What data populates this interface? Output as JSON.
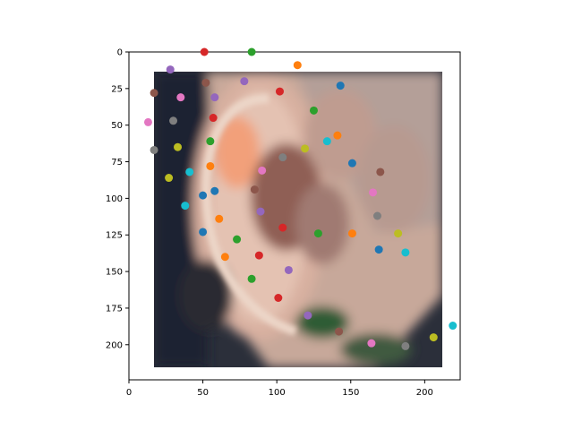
{
  "chart_data": {
    "type": "scatter",
    "background_image": "ear-closeup",
    "xlim": [
      0,
      224
    ],
    "ylim": [
      224,
      0
    ],
    "x_ticks": [
      0,
      50,
      100,
      150,
      200
    ],
    "y_ticks": [
      0,
      25,
      50,
      75,
      100,
      125,
      150,
      175,
      200
    ],
    "grid": false,
    "points": [
      {
        "x": 28,
        "y": 12,
        "color": "#9467bd"
      },
      {
        "x": 51,
        "y": 0,
        "color": "#d62728"
      },
      {
        "x": 83,
        "y": 0,
        "color": "#2ca02c"
      },
      {
        "x": 114,
        "y": 9,
        "color": "#ff7f0e"
      },
      {
        "x": 17,
        "y": 28,
        "color": "#8c564b"
      },
      {
        "x": 52,
        "y": 21,
        "color": "#8c564b"
      },
      {
        "x": 78,
        "y": 20,
        "color": "#9467bd"
      },
      {
        "x": 102,
        "y": 27,
        "color": "#d62728"
      },
      {
        "x": 143,
        "y": 23,
        "color": "#1f77b4"
      },
      {
        "x": 35,
        "y": 31,
        "color": "#e377c2"
      },
      {
        "x": 58,
        "y": 31,
        "color": "#9467bd"
      },
      {
        "x": 13,
        "y": 48,
        "color": "#e377c2"
      },
      {
        "x": 30,
        "y": 47,
        "color": "#7f7f7f"
      },
      {
        "x": 57,
        "y": 45,
        "color": "#d62728"
      },
      {
        "x": 125,
        "y": 40,
        "color": "#2ca02c"
      },
      {
        "x": 141,
        "y": 57,
        "color": "#ff7f0e"
      },
      {
        "x": 17,
        "y": 67,
        "color": "#7f7f7f"
      },
      {
        "x": 33,
        "y": 65,
        "color": "#bcbd22"
      },
      {
        "x": 55,
        "y": 61,
        "color": "#2ca02c"
      },
      {
        "x": 134,
        "y": 61,
        "color": "#17becf"
      },
      {
        "x": 119,
        "y": 66,
        "color": "#bcbd22"
      },
      {
        "x": 104,
        "y": 72,
        "color": "#7f7f7f"
      },
      {
        "x": 151,
        "y": 76,
        "color": "#1f77b4"
      },
      {
        "x": 55,
        "y": 78,
        "color": "#ff7f0e"
      },
      {
        "x": 90,
        "y": 81,
        "color": "#e377c2"
      },
      {
        "x": 41,
        "y": 82,
        "color": "#17becf"
      },
      {
        "x": 27,
        "y": 86,
        "color": "#bcbd22"
      },
      {
        "x": 170,
        "y": 82,
        "color": "#8c564b"
      },
      {
        "x": 50,
        "y": 98,
        "color": "#1f77b4"
      },
      {
        "x": 58,
        "y": 95,
        "color": "#1f77b4"
      },
      {
        "x": 85,
        "y": 94,
        "color": "#8c564b"
      },
      {
        "x": 165,
        "y": 96,
        "color": "#e377c2"
      },
      {
        "x": 38,
        "y": 105,
        "color": "#17becf"
      },
      {
        "x": 89,
        "y": 109,
        "color": "#9467bd"
      },
      {
        "x": 61,
        "y": 114,
        "color": "#ff7f0e"
      },
      {
        "x": 168,
        "y": 112,
        "color": "#7f7f7f"
      },
      {
        "x": 104,
        "y": 120,
        "color": "#d62728"
      },
      {
        "x": 50,
        "y": 123,
        "color": "#1f77b4"
      },
      {
        "x": 128,
        "y": 124,
        "color": "#2ca02c"
      },
      {
        "x": 151,
        "y": 124,
        "color": "#ff7f0e"
      },
      {
        "x": 182,
        "y": 124,
        "color": "#bcbd22"
      },
      {
        "x": 73,
        "y": 128,
        "color": "#2ca02c"
      },
      {
        "x": 169,
        "y": 135,
        "color": "#1f77b4"
      },
      {
        "x": 187,
        "y": 137,
        "color": "#17becf"
      },
      {
        "x": 65,
        "y": 140,
        "color": "#ff7f0e"
      },
      {
        "x": 88,
        "y": 139,
        "color": "#d62728"
      },
      {
        "x": 108,
        "y": 149,
        "color": "#9467bd"
      },
      {
        "x": 83,
        "y": 155,
        "color": "#2ca02c"
      },
      {
        "x": 101,
        "y": 168,
        "color": "#d62728"
      },
      {
        "x": 121,
        "y": 180,
        "color": "#9467bd"
      },
      {
        "x": 142,
        "y": 191,
        "color": "#8c564b"
      },
      {
        "x": 164,
        "y": 199,
        "color": "#e377c2"
      },
      {
        "x": 187,
        "y": 201,
        "color": "#7f7f7f"
      },
      {
        "x": 206,
        "y": 195,
        "color": "#bcbd22"
      },
      {
        "x": 219,
        "y": 187,
        "color": "#17becf"
      }
    ]
  }
}
